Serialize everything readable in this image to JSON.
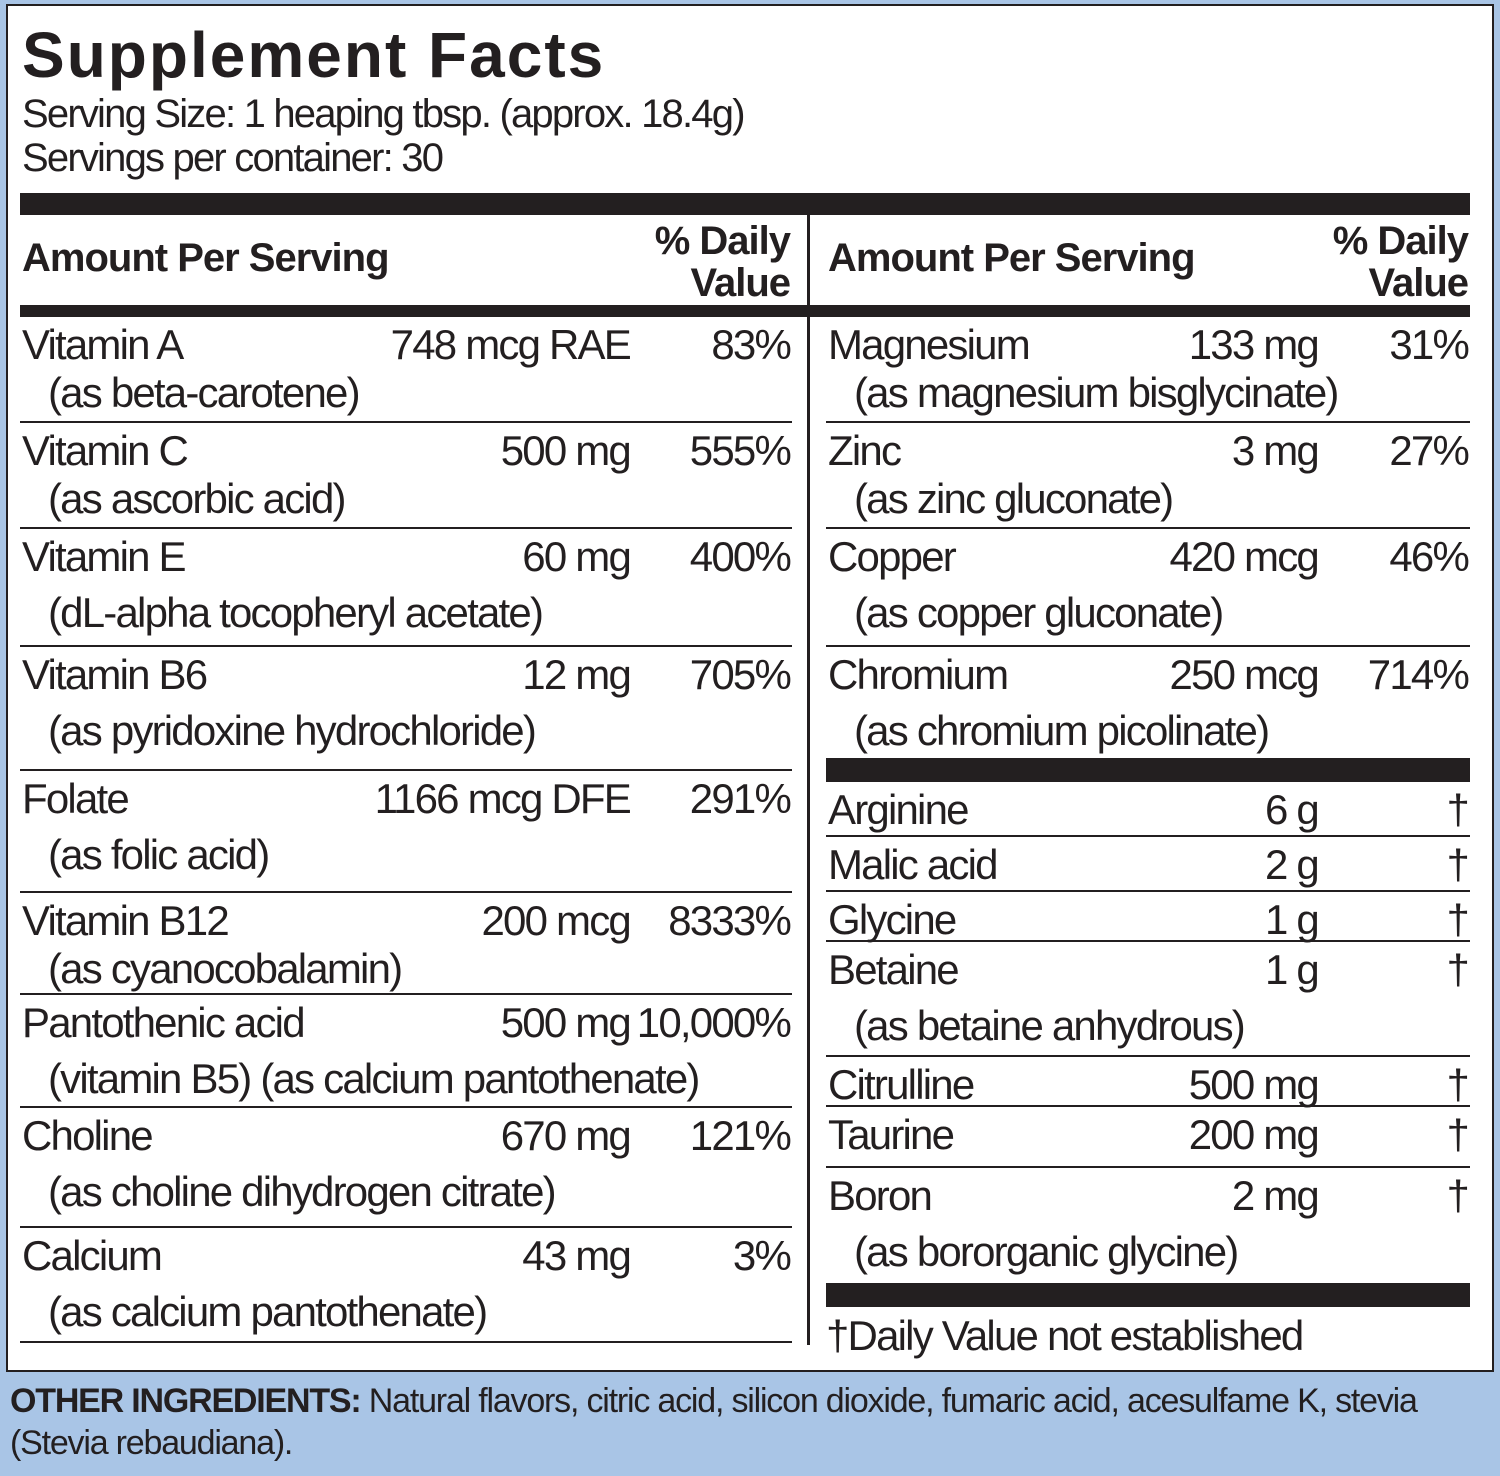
{
  "title": "Supplement Facts",
  "serving_size": "Serving Size: 1 heaping tbsp. (approx. 18.4g)",
  "servings_per_container": "Servings per container: 30",
  "header": {
    "amount": "Amount Per Serving",
    "dv_line1": "% Daily",
    "dv_line2": "Value"
  },
  "left_rows": [
    {
      "name": "Vitamin A",
      "sub": "(as beta-carotene)",
      "amount": "748 mcg RAE",
      "dv": "83%"
    },
    {
      "name": "Vitamin C",
      "sub": "(as ascorbic acid)",
      "amount": "500 mg",
      "dv": "555%"
    },
    {
      "name": "Vitamin E",
      "sub": "(dL-alpha tocopheryl acetate)",
      "amount": "60 mg",
      "dv": "400%"
    },
    {
      "name": "Vitamin B6",
      "sub": "(as pyridoxine hydrochloride)",
      "amount": "12 mg",
      "dv": "705%"
    },
    {
      "name": "Folate",
      "sub": "(as folic acid)",
      "amount": "1166 mcg DFE",
      "dv": "291%"
    },
    {
      "name": "Vitamin B12",
      "sub": "(as cyanocobalamin)",
      "amount": "200 mcg",
      "dv": "8333%"
    },
    {
      "name": "Pantothenic acid",
      "sub": "(vitamin B5) (as calcium pantothenate)",
      "amount": "500 mg",
      "dv": "10,000%"
    },
    {
      "name": "Choline",
      "sub": "(as choline dihydrogen citrate)",
      "amount": "670 mg",
      "dv": "121%"
    },
    {
      "name": "Calcium",
      "sub": "(as calcium pantothenate)",
      "amount": "43 mg",
      "dv": "3%"
    }
  ],
  "right_rows": [
    {
      "name": "Magnesium",
      "sub": "(as magnesium bisglycinate)",
      "amount": "133 mg",
      "dv": "31%"
    },
    {
      "name": "Zinc",
      "sub": "(as zinc gluconate)",
      "amount": "3 mg",
      "dv": "27%"
    },
    {
      "name": "Copper",
      "sub": "(as copper gluconate)",
      "amount": "420 mcg",
      "dv": "46%"
    },
    {
      "name": "Chromium",
      "sub": "(as chromium picolinate)",
      "amount": "250 mcg",
      "dv": "714%"
    }
  ],
  "right_rows_2": [
    {
      "name": "Arginine",
      "amount": "6 g",
      "dv": "†"
    },
    {
      "name": "Malic acid",
      "amount": "2 g",
      "dv": "†"
    },
    {
      "name": "Glycine",
      "amount": "1 g",
      "dv": "†"
    },
    {
      "name": "Betaine",
      "sub": "(as betaine anhydrous)",
      "amount": "1 g",
      "dv": "†"
    },
    {
      "name": "Citrulline",
      "amount": "500 mg",
      "dv": "†"
    },
    {
      "name": "Taurine",
      "amount": "200 mg",
      "dv": "†"
    },
    {
      "name": "Boron",
      "sub": "(as bororganic glycine)",
      "amount": "2 mg",
      "dv": "†"
    }
  ],
  "footnote": "†Daily Value not established",
  "other_ingredients": {
    "label": "OTHER INGREDIENTS:",
    "text": " Natural flavors, citric acid, silicon dioxide, fumaric acid, acesulfame K, stevia (Stevia rebaudiana)."
  },
  "colors": {
    "background": "#a9c5e6",
    "text": "#231f20",
    "panel": "#ffffff"
  }
}
